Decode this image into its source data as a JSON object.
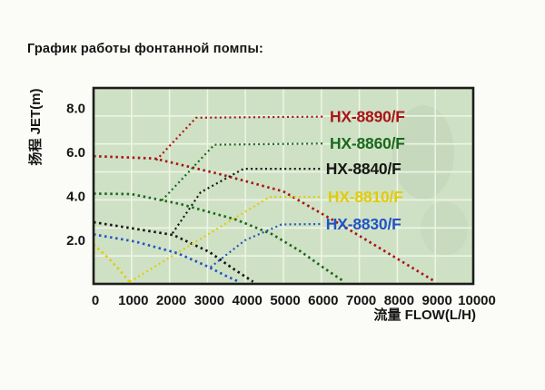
{
  "page": {
    "title": "График работы фонтанной помпы:"
  },
  "chart_data": {
    "type": "line",
    "style": "dotted-curves",
    "title": "График работы фонтанной помпы:",
    "xlabel": "流量 FLOW(L/H)",
    "ylabel": "扬程 JET(m)",
    "xlim": [
      0,
      10000
    ],
    "ylim": [
      0,
      8.9
    ],
    "x_ticks": [
      0,
      1000,
      2000,
      3000,
      4000,
      5000,
      6000,
      7000,
      8000,
      9000,
      10000
    ],
    "y_ticks": [
      2.0,
      4.0,
      6.0,
      8.0
    ],
    "y_tick_labels": [
      "2.0",
      "4.0",
      "6.0",
      "8.0"
    ],
    "grid": true,
    "plot_bg": "#cfe1c4",
    "grid_color": "#edf5e6",
    "frame_color": "#1d1d1b",
    "legend_position": "inside-right",
    "series": [
      {
        "name": "HX-8890/F",
        "color": "#a91418",
        "points": [
          [
            0,
            5.8
          ],
          [
            1600,
            5.7
          ],
          [
            3300,
            5.0
          ],
          [
            5000,
            4.2
          ],
          [
            6600,
            2.6
          ],
          [
            7800,
            1.35
          ],
          [
            9000,
            0.1
          ]
        ],
        "label_leader": [
          [
            1650,
            5.62
          ],
          [
            2700,
            7.55
          ],
          [
            6100,
            7.6
          ]
        ]
      },
      {
        "name": "HX-8860/F",
        "color": "#19691c",
        "points": [
          [
            0,
            4.1
          ],
          [
            1000,
            4.08
          ],
          [
            2300,
            3.62
          ],
          [
            3750,
            2.92
          ],
          [
            4700,
            2.26
          ],
          [
            5450,
            1.48
          ],
          [
            6050,
            0.74
          ],
          [
            6600,
            0.1
          ]
        ],
        "label_leader": [
          [
            1800,
            3.79
          ],
          [
            3180,
            6.32
          ],
          [
            6100,
            6.38
          ]
        ]
      },
      {
        "name": "HX-8840/F",
        "color": "#161614",
        "points": [
          [
            0,
            2.8
          ],
          [
            1100,
            2.5
          ],
          [
            2100,
            2.22
          ],
          [
            3050,
            1.45
          ],
          [
            3650,
            0.72
          ],
          [
            4200,
            0.1
          ]
        ],
        "label_leader": [
          [
            2080,
            2.3
          ],
          [
            2820,
            4.16
          ],
          [
            3950,
            5.23
          ],
          [
            6000,
            5.23
          ]
        ]
      },
      {
        "name": "HX-8810/F",
        "color": "#e2cb0b",
        "points": [
          [
            0,
            1.8
          ],
          [
            420,
            1.12
          ],
          [
            700,
            0.6
          ],
          [
            950,
            0.08
          ]
        ],
        "label_leader": [
          [
            960,
            0.1
          ],
          [
            4640,
            3.95
          ],
          [
            6050,
            3.95
          ]
        ]
      },
      {
        "name": "HX-8830/F",
        "color": "#2255c4",
        "points": [
          [
            0,
            2.25
          ],
          [
            1100,
            1.92
          ],
          [
            2200,
            1.4
          ],
          [
            2930,
            0.85
          ],
          [
            3470,
            0.38
          ],
          [
            3850,
            0.08
          ]
        ],
        "label_leader": [
          [
            3080,
            0.76
          ],
          [
            3990,
            1.98
          ],
          [
            4950,
            2.7
          ],
          [
            6000,
            2.72
          ]
        ]
      }
    ]
  }
}
